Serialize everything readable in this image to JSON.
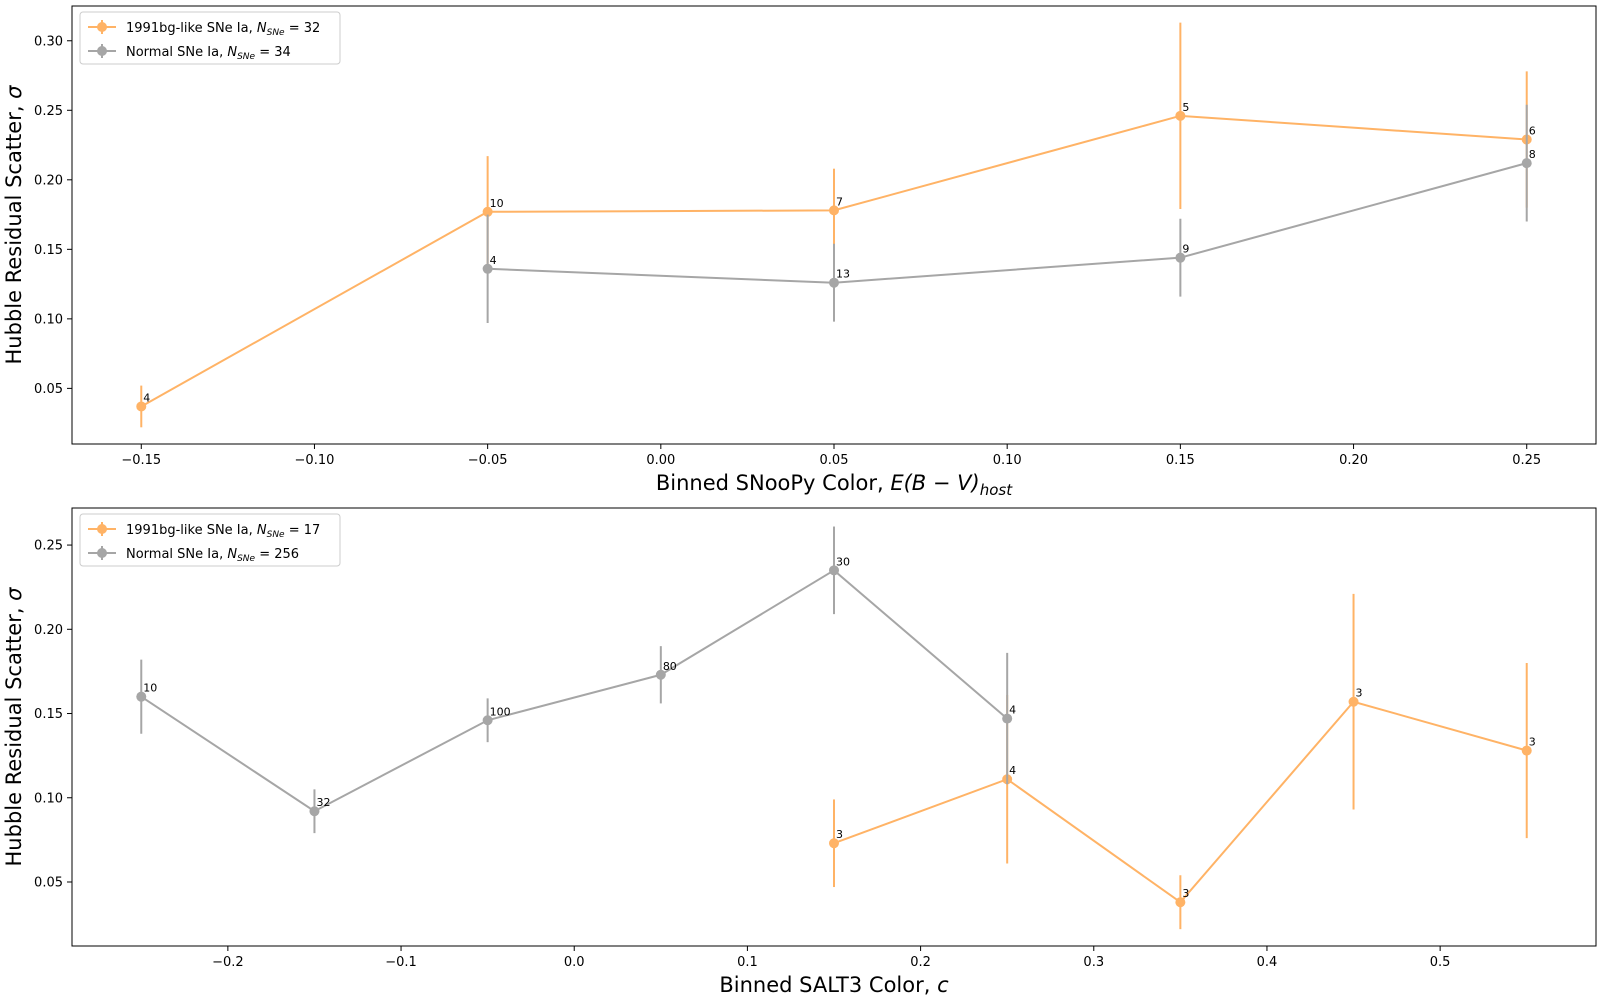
{
  "chart_data": [
    {
      "type": "line",
      "xlabel_main": "Binned SNooPy Color, ",
      "xlabel_math": "E(B − V)",
      "xlabel_sub": "host",
      "ylabel_main": "Hubble Residual Scatter, ",
      "ylabel_math": "σ",
      "xlim": [
        -0.17,
        0.27
      ],
      "ylim": [
        0.01,
        0.325
      ],
      "xticks": [
        -0.15,
        -0.1,
        -0.05,
        0.0,
        0.05,
        0.1,
        0.15,
        0.2,
        0.25
      ],
      "xtick_labels": [
        "−0.15",
        "−0.10",
        "−0.05",
        "0.00",
        "0.05",
        "0.10",
        "0.15",
        "0.20",
        "0.25"
      ],
      "yticks": [
        0.05,
        0.1,
        0.15,
        0.2,
        0.25,
        0.3
      ],
      "ytick_labels": [
        "0.05",
        "0.10",
        "0.15",
        "0.20",
        "0.25",
        "0.30"
      ],
      "legend_position": "top-left",
      "series": [
        {
          "label_main": "1991bg-like SNe Ia, ",
          "label_N": "N",
          "label_sub": "SNe",
          "label_count": " = 32",
          "color": "#ffb366",
          "x": [
            -0.15,
            -0.05,
            0.05,
            0.15,
            0.25
          ],
          "y": [
            0.037,
            0.177,
            0.178,
            0.246,
            0.229
          ],
          "yerr": [
            0.015,
            0.04,
            0.03,
            0.067,
            0.049
          ],
          "counts": [
            "4",
            "10",
            "7",
            "5",
            "6"
          ]
        },
        {
          "label_main": "Normal SNe Ia, ",
          "label_N": "N",
          "label_sub": "SNe",
          "label_count": " = 34",
          "color": "#a6a6a6",
          "x": [
            -0.05,
            0.05,
            0.15,
            0.25
          ],
          "y": [
            0.136,
            0.126,
            0.144,
            0.212
          ],
          "yerr": [
            0.039,
            0.028,
            0.028,
            0.042
          ],
          "counts": [
            "4",
            "13",
            "9",
            "8"
          ]
        }
      ]
    },
    {
      "type": "line",
      "xlabel_main": "Binned SALT3 Color, ",
      "xlabel_math": "c",
      "xlabel_sub": "",
      "ylabel_main": "Hubble Residual Scatter, ",
      "ylabel_math": "σ",
      "xlim": [
        -0.29,
        0.59
      ],
      "ylim": [
        0.012,
        0.272
      ],
      "xticks": [
        -0.2,
        -0.1,
        0.0,
        0.1,
        0.2,
        0.3,
        0.4,
        0.5
      ],
      "xtick_labels": [
        "−0.2",
        "−0.1",
        "0.0",
        "0.1",
        "0.2",
        "0.3",
        "0.4",
        "0.5"
      ],
      "yticks": [
        0.05,
        0.1,
        0.15,
        0.2,
        0.25
      ],
      "ytick_labels": [
        "0.05",
        "0.10",
        "0.15",
        "0.20",
        "0.25"
      ],
      "legend_position": "top-left",
      "series": [
        {
          "label_main": "1991bg-like SNe Ia, ",
          "label_N": "N",
          "label_sub": "SNe",
          "label_count": " = 17",
          "color": "#ffb366",
          "x": [
            0.15,
            0.25,
            0.35,
            0.45,
            0.55
          ],
          "y": [
            0.073,
            0.111,
            0.038,
            0.157,
            0.128
          ],
          "yerr": [
            0.026,
            0.05,
            0.016,
            0.064,
            0.052
          ],
          "counts": [
            "3",
            "4",
            "3",
            "3",
            "3"
          ]
        },
        {
          "label_main": "Normal SNe Ia, ",
          "label_N": "N",
          "label_sub": "SNe",
          "label_count": " = 256",
          "color": "#a6a6a6",
          "x": [
            -0.25,
            -0.15,
            -0.05,
            0.05,
            0.15,
            0.25
          ],
          "y": [
            0.16,
            0.092,
            0.146,
            0.173,
            0.235,
            0.147
          ],
          "yerr": [
            0.022,
            0.013,
            0.013,
            0.017,
            0.026,
            0.039
          ],
          "counts": [
            "10",
            "32",
            "100",
            "80",
            "30",
            "4"
          ]
        }
      ]
    }
  ]
}
